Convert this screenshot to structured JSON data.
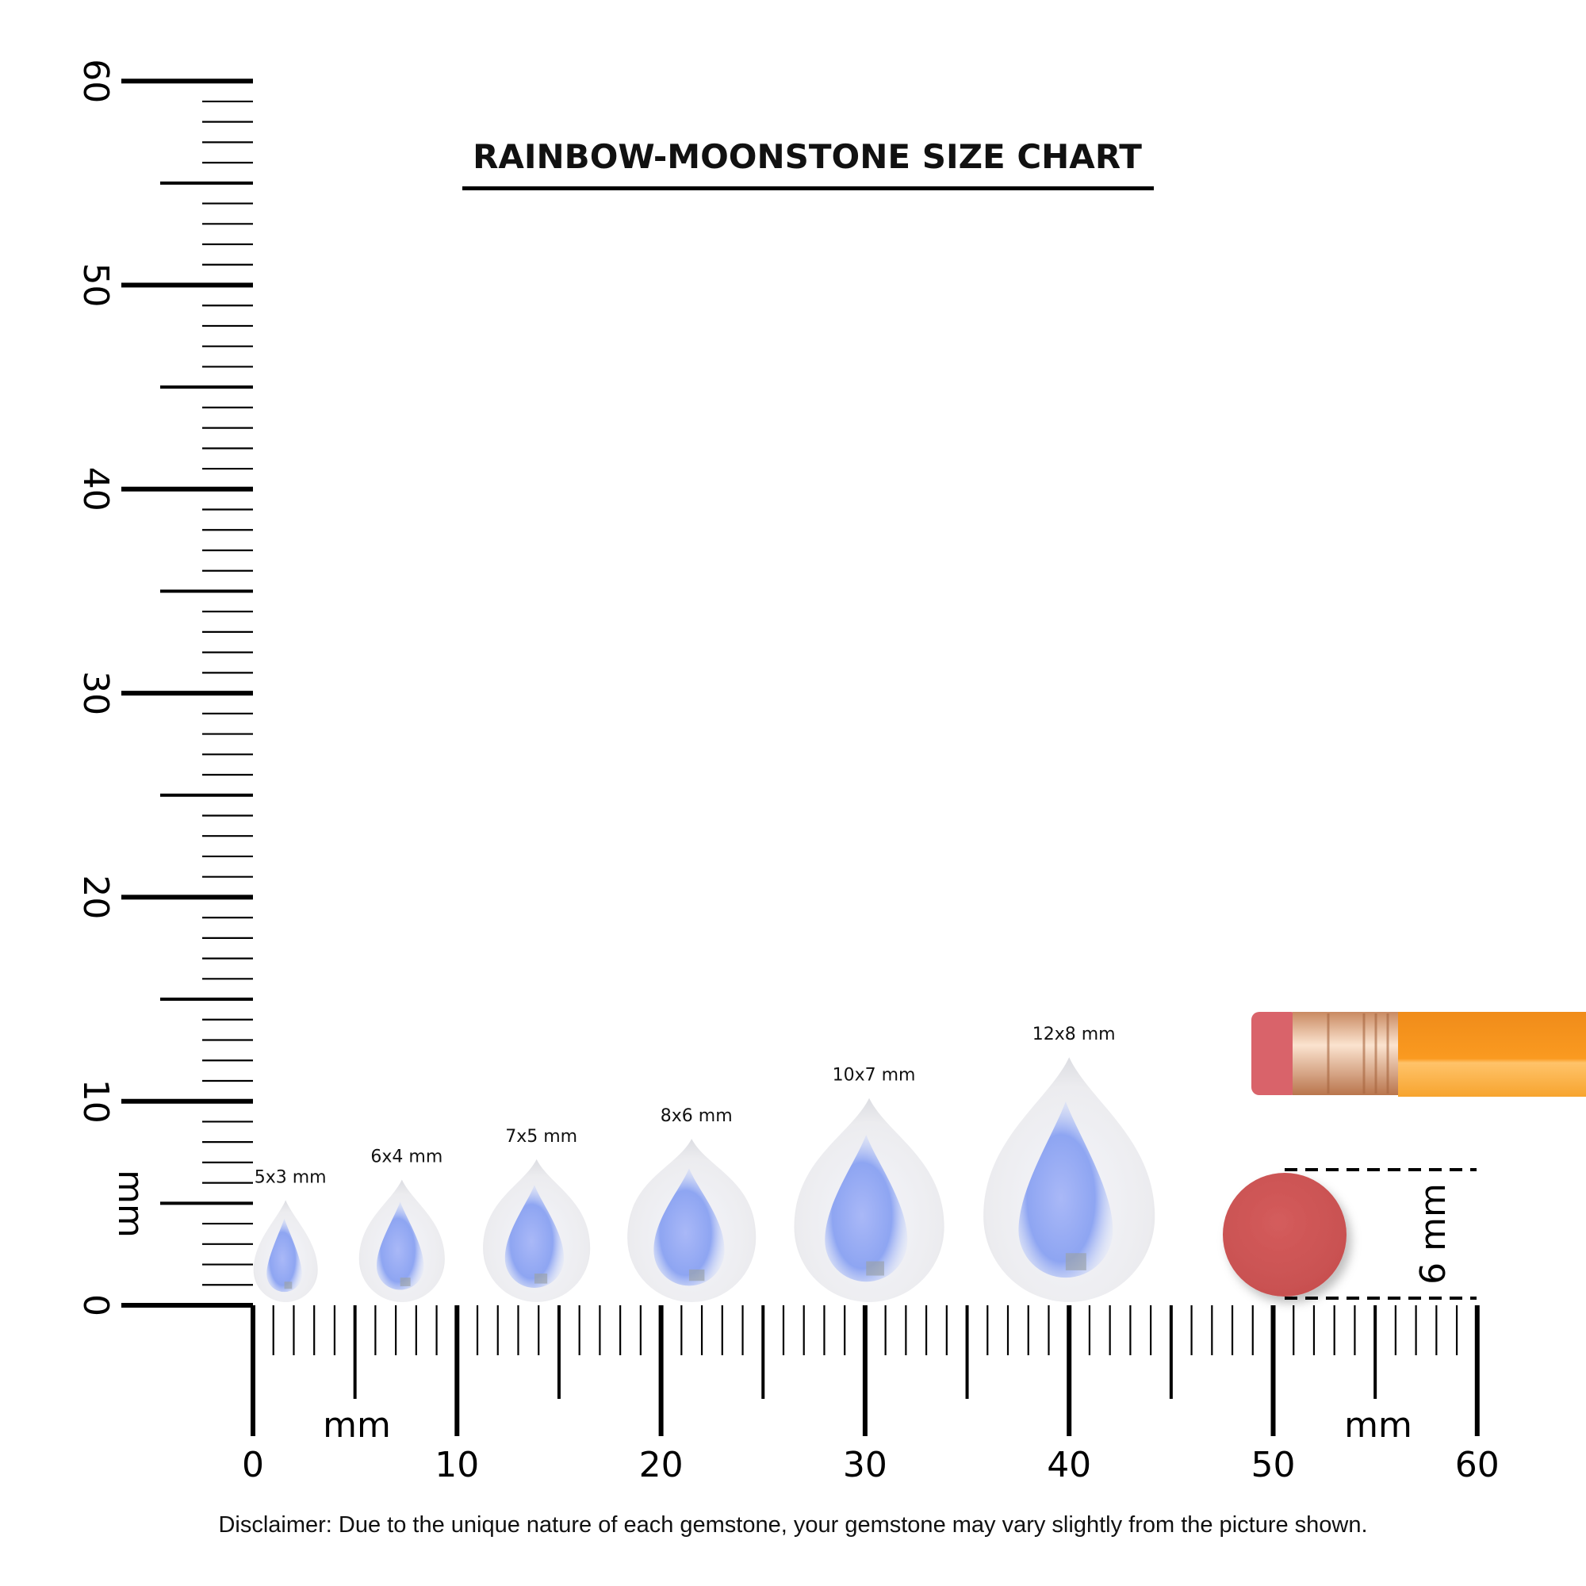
{
  "title": "RAINBOW-MOONSTONE SIZE CHART",
  "disclaimer": "Disclaimer: Due to the unique nature of each gemstone, your gemstone may vary slightly from the picture shown.",
  "ruler": {
    "unit": "mm",
    "x_labels": [
      "0",
      "10",
      "20",
      "30",
      "40",
      "50",
      "60"
    ],
    "y_labels": [
      "0",
      "10",
      "20",
      "30",
      "40",
      "50",
      "60"
    ],
    "range_mm": [
      0,
      60
    ]
  },
  "gems": [
    {
      "label": "5x3 mm",
      "length_mm": 5,
      "width_mm": 3,
      "center_mm": 1.6
    },
    {
      "label": "6x4 mm",
      "length_mm": 6,
      "width_mm": 4,
      "center_mm": 7.3
    },
    {
      "label": "7x5 mm",
      "length_mm": 7,
      "width_mm": 5,
      "center_mm": 13.9
    },
    {
      "label": "8x6 mm",
      "length_mm": 8,
      "width_mm": 6,
      "center_mm": 21.5
    },
    {
      "label": "10x7 mm",
      "length_mm": 10,
      "width_mm": 7,
      "center_mm": 30.2
    },
    {
      "label": "12x8 mm",
      "length_mm": 12,
      "width_mm": 8,
      "center_mm": 40.0
    }
  ],
  "reference": {
    "label": "6 mm",
    "eraser_diameter_mm": 6
  },
  "colors": {
    "eraser": "#d35a5a",
    "pencil": "#f7941d",
    "ferrule": "#e0a07a",
    "gem_blue": "#8aa8f5"
  }
}
